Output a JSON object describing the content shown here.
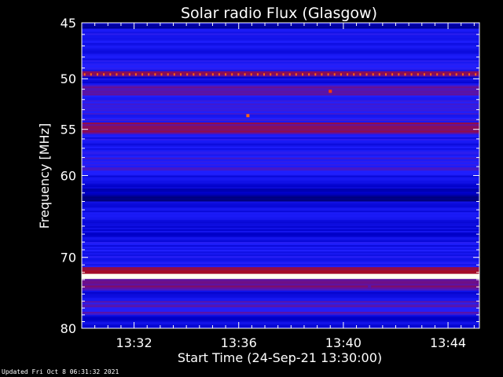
{
  "chart_data": {
    "type": "heatmap",
    "title": "Solar radio Flux (Glasgow)",
    "xlabel": "Start Time (24-Sep-21 13:30:00)",
    "ylabel": "Frequency [MHz]",
    "x_unit": "minutes after 13:30:00",
    "xlim": [
      0,
      15.2
    ],
    "ylim": [
      45,
      80
    ],
    "y_inverted": true,
    "y_scale": "log",
    "xticks": [
      {
        "minute": 2,
        "label": "13:32"
      },
      {
        "minute": 6,
        "label": "13:36"
      },
      {
        "minute": 10,
        "label": "13:40"
      },
      {
        "minute": 14,
        "label": "13:44"
      }
    ],
    "yticks": [
      {
        "value": 45,
        "label": "45"
      },
      {
        "value": 50,
        "label": "50"
      },
      {
        "value": 55,
        "label": "55"
      },
      {
        "value": 60,
        "label": "60"
      },
      {
        "value": 70,
        "label": "70"
      },
      {
        "value": 80,
        "label": "80"
      }
    ],
    "intensity_bands": [
      {
        "f_from": 45.0,
        "f_to": 45.5,
        "level": 0.1
      },
      {
        "f_from": 45.5,
        "f_to": 49.3,
        "level": 0.25
      },
      {
        "f_from": 49.3,
        "f_to": 49.8,
        "level": 0.45
      },
      {
        "f_from": 49.8,
        "f_to": 50.6,
        "level": 0.2
      },
      {
        "f_from": 50.6,
        "f_to": 51.6,
        "level": 0.4
      },
      {
        "f_from": 51.6,
        "f_to": 54.3,
        "level": 0.3
      },
      {
        "f_from": 54.3,
        "f_to": 55.5,
        "level": 0.45
      },
      {
        "f_from": 55.5,
        "f_to": 58.0,
        "level": 0.25
      },
      {
        "f_from": 58.0,
        "f_to": 60.0,
        "level": 0.3
      },
      {
        "f_from": 60.0,
        "f_to": 61.5,
        "level": 0.2
      },
      {
        "f_from": 61.5,
        "f_to": 63.0,
        "level": 0.1
      },
      {
        "f_from": 63.0,
        "f_to": 66.0,
        "level": 0.22
      },
      {
        "f_from": 66.0,
        "f_to": 68.0,
        "level": 0.18
      },
      {
        "f_from": 68.0,
        "f_to": 71.3,
        "level": 0.25
      },
      {
        "f_from": 71.3,
        "f_to": 72.2,
        "level": 0.5
      },
      {
        "f_from": 72.2,
        "f_to": 72.9,
        "level": 1.0
      },
      {
        "f_from": 72.9,
        "f_to": 74.5,
        "level": 0.42
      },
      {
        "f_from": 74.5,
        "f_to": 76.0,
        "level": 0.2
      },
      {
        "f_from": 76.0,
        "f_to": 78.0,
        "level": 0.35
      },
      {
        "f_from": 78.0,
        "f_to": 80.0,
        "level": 0.18
      }
    ],
    "interference_line": {
      "frequency": 49.6,
      "level": 0.75
    },
    "spots": [
      {
        "minute": 6.35,
        "frequency": 53.6,
        "level": 0.75
      },
      {
        "minute": 9.5,
        "frequency": 51.2,
        "level": 0.7
      },
      {
        "minute": 11.0,
        "frequency": 74.0,
        "level": 0.4
      }
    ],
    "colors": {
      "background": "#000000",
      "axis": "#ffffff",
      "scale": [
        "#00003c",
        "#0000c8",
        "#2020ff",
        "#6a1090",
        "#b40a0a",
        "#ff4000",
        "#ffd040",
        "#fffff0"
      ]
    }
  },
  "footer": {
    "text": "Updated Fri Oct  8 06:31:32 2021"
  }
}
